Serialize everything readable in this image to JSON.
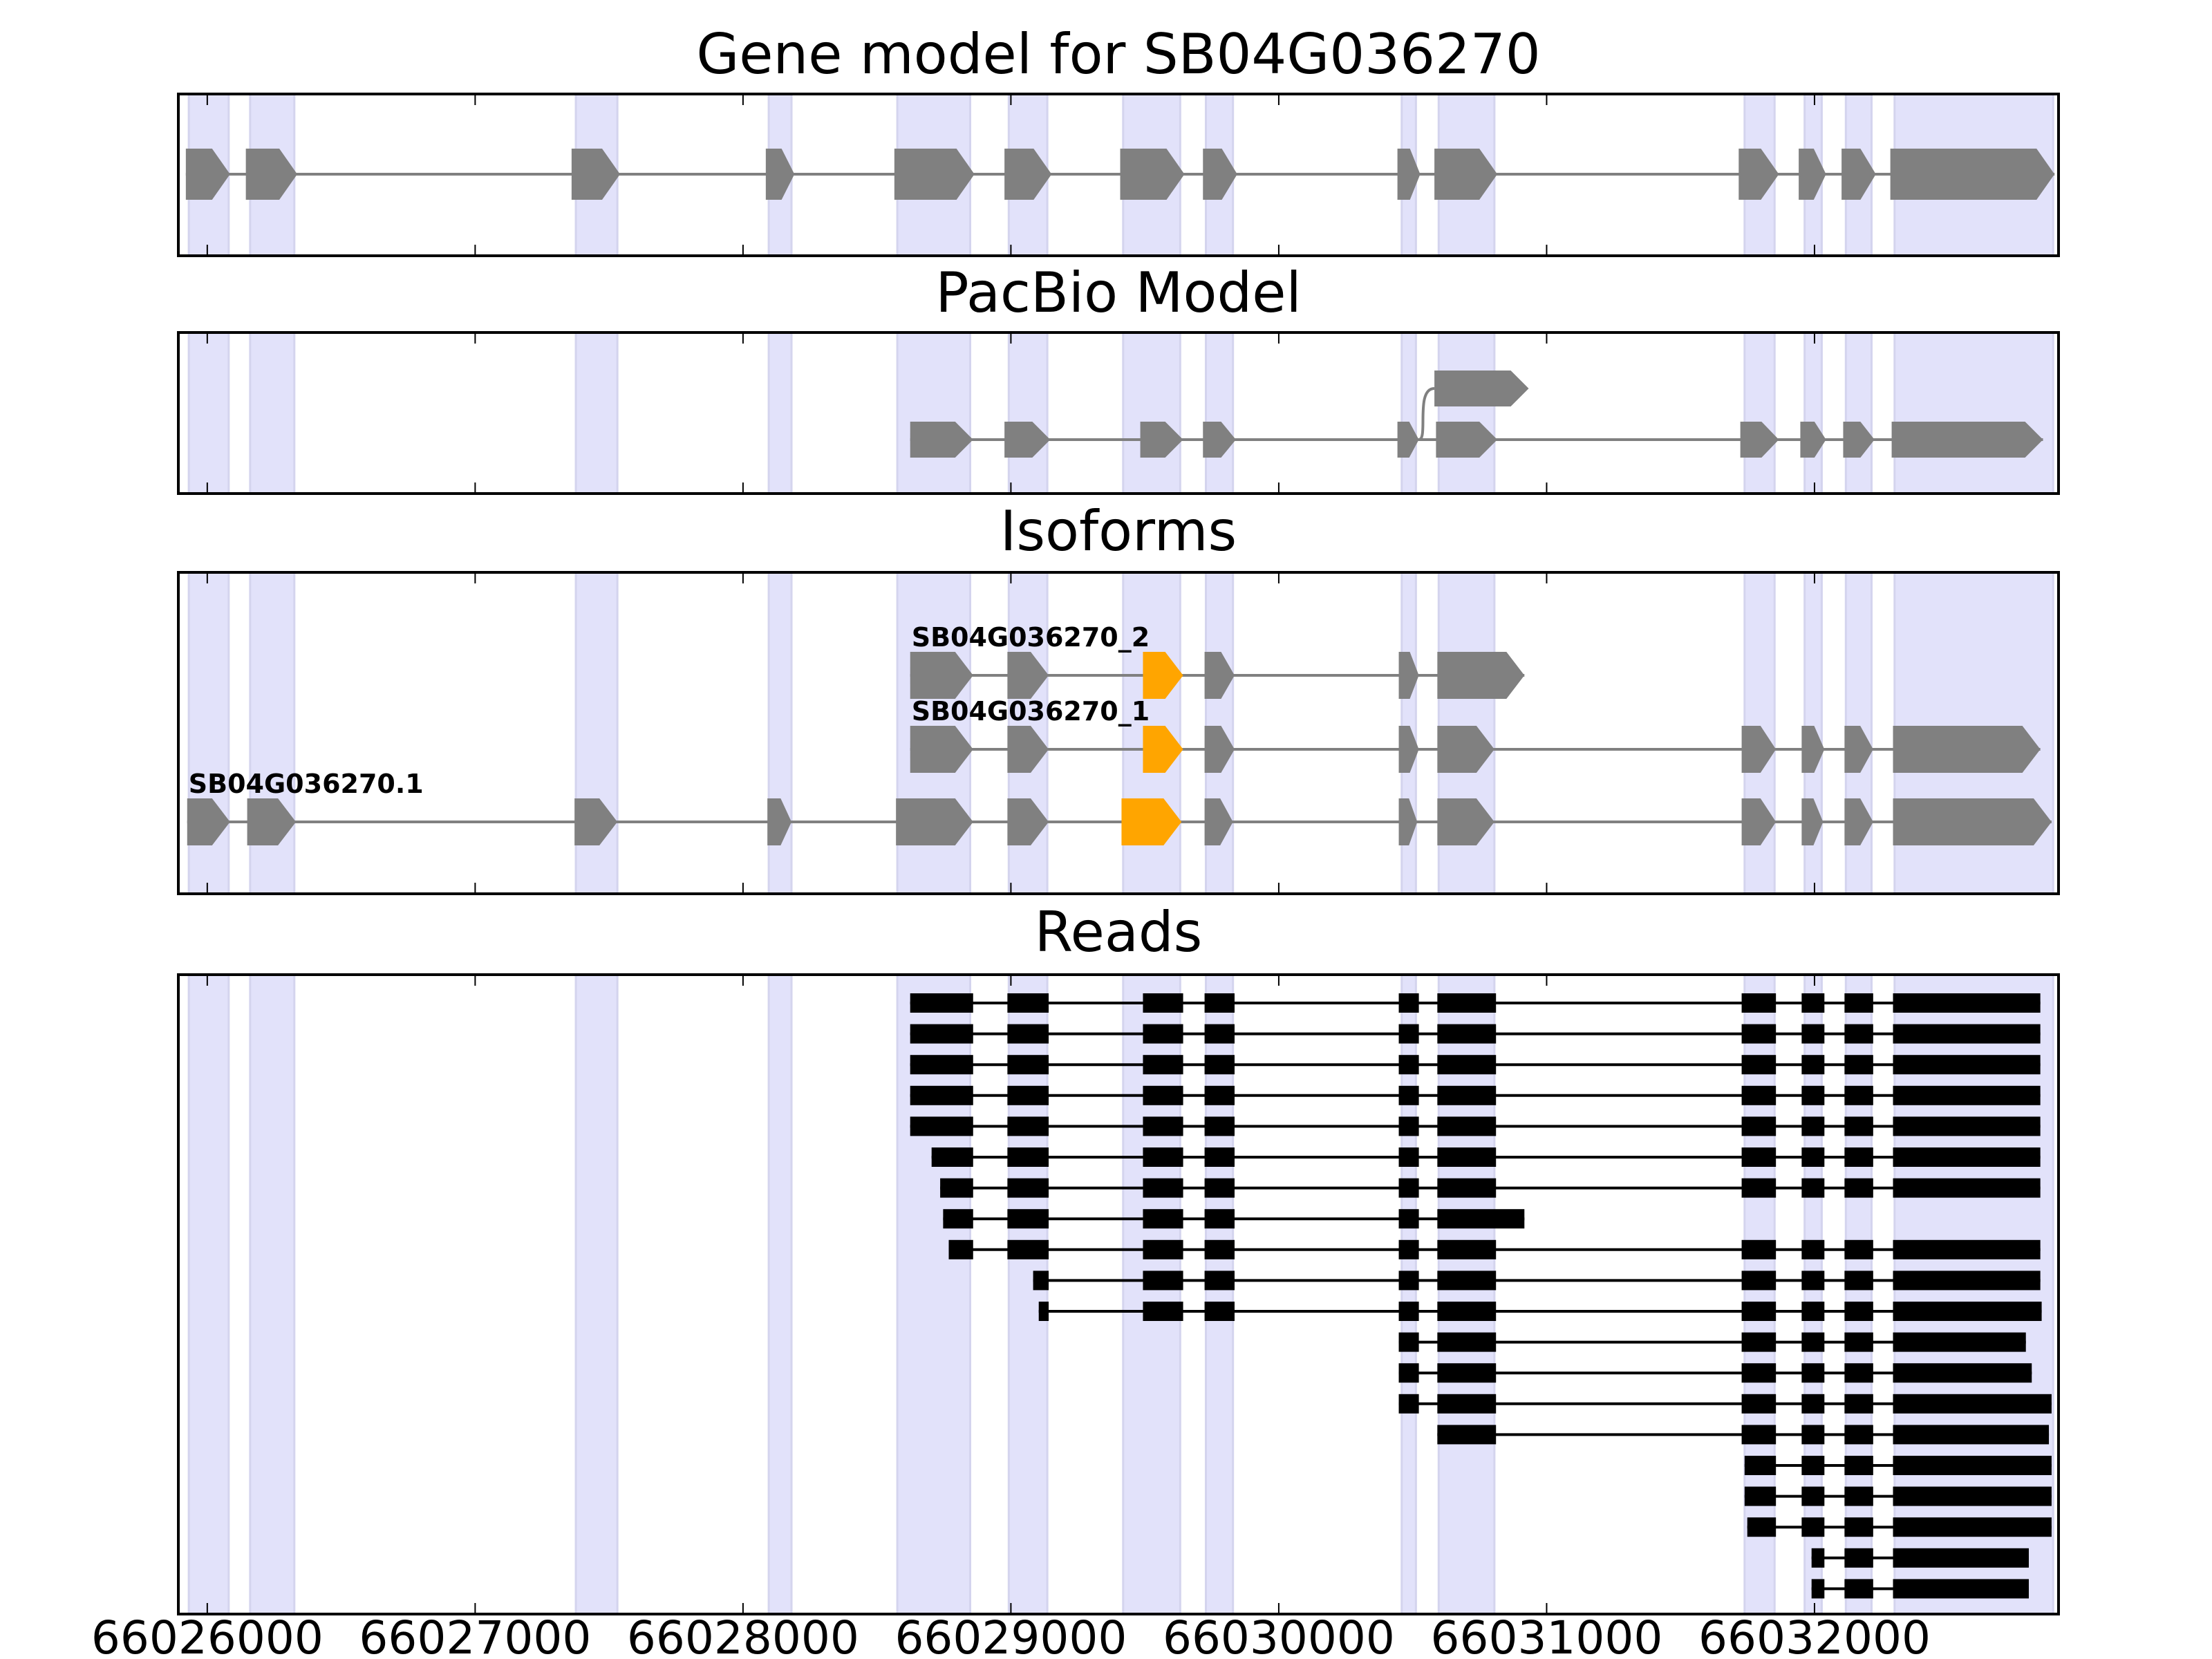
{
  "chart_data": {
    "type": "gene-structure",
    "xlim": [
      66025892,
      66032911
    ],
    "xticks": [
      66026000,
      66027000,
      66028000,
      66029000,
      66030000,
      66031000,
      66032000
    ],
    "xtick_labels": [
      "66026000",
      "66027000",
      "66028000",
      "66029000",
      "66030000",
      "66031000",
      "66032000"
    ],
    "colors": {
      "shade": "#e2e2fa",
      "exon": "#808080",
      "highlight": "#ffa500",
      "read": "#000000",
      "intron_gray": "#808080"
    },
    "shaded_exons": [
      [
        66025931,
        66026080
      ],
      [
        66026160,
        66026325
      ],
      [
        66027376,
        66027531
      ],
      [
        66028096,
        66028181
      ],
      [
        66028576,
        66028848
      ],
      [
        66028992,
        66029136
      ],
      [
        66029419,
        66029632
      ],
      [
        66029728,
        66029829
      ],
      [
        66030459,
        66030512
      ],
      [
        66030597,
        66030805
      ],
      [
        66031739,
        66031851
      ],
      [
        66031963,
        66032027
      ],
      [
        66032117,
        66032213
      ],
      [
        66032299,
        66032891
      ]
    ],
    "panels": [
      {
        "title": "Gene model for SB04G036270",
        "tracks": [
          {
            "exons": [
              [
                66025920,
                66026085
              ],
              [
                66026144,
                66026336
              ],
              [
                66027360,
                66027541
              ],
              [
                66028085,
                66028192
              ],
              [
                66028565,
                66028864
              ],
              [
                66028976,
                66029152
              ],
              [
                66029408,
                66029648
              ],
              [
                66029717,
                66029845
              ],
              [
                66030443,
                66030528
              ],
              [
                66030581,
                66030816
              ],
              [
                66031717,
                66031867
              ],
              [
                66031941,
                66032043
              ],
              [
                66032101,
                66032229
              ],
              [
                66032283,
                66032896
              ]
            ]
          }
        ]
      },
      {
        "title": "PacBio Model",
        "tracks": [
          {
            "exons": [
              [
                66028624,
                66028859
              ],
              [
                66028976,
                66029147
              ],
              [
                66029483,
                66029643
              ],
              [
                66029717,
                66029840
              ],
              [
                66030443,
                66030523
              ],
              [
                66030587,
                66030816
              ],
              [
                66031723,
                66031867
              ],
              [
                66031947,
                66032043
              ],
              [
                66032107,
                66032224
              ],
              [
                66032288,
                66032853
              ]
            ]
          },
          {
            "branch_from": 66030523,
            "exons": [
              [
                66030581,
                66030933
              ]
            ]
          }
        ]
      },
      {
        "title": "Isoforms",
        "tracks": [
          {
            "label": "SB04G036270.1",
            "highlight_index": 6,
            "exons": [
              [
                66025925,
                66026085
              ],
              [
                66026149,
                66026331
              ],
              [
                66027371,
                66027531
              ],
              [
                66028091,
                66028181
              ],
              [
                66028571,
                66028859
              ],
              [
                66028987,
                66029141
              ],
              [
                66029413,
                66029637
              ],
              [
                66029723,
                66029829
              ],
              [
                66030448,
                66030517
              ],
              [
                66030592,
                66030805
              ],
              [
                66031728,
                66031856
              ],
              [
                66031952,
                66032032
              ],
              [
                66032112,
                66032219
              ],
              [
                66032293,
                66032885
              ]
            ]
          },
          {
            "label": "SB04G036270_1",
            "highlight_index": 2,
            "exons": [
              [
                66028624,
                66028859
              ],
              [
                66028987,
                66029141
              ],
              [
                66029493,
                66029643
              ],
              [
                66029723,
                66029835
              ],
              [
                66030448,
                66030523
              ],
              [
                66030592,
                66030805
              ],
              [
                66031728,
                66031856
              ],
              [
                66031952,
                66032037
              ],
              [
                66032112,
                66032219
              ],
              [
                66032293,
                66032843
              ]
            ]
          },
          {
            "label": "SB04G036270_2",
            "highlight_index": 2,
            "exons": [
              [
                66028624,
                66028859
              ],
              [
                66028987,
                66029141
              ],
              [
                66029493,
                66029643
              ],
              [
                66029723,
                66029835
              ],
              [
                66030448,
                66030523
              ],
              [
                66030592,
                66030917
              ]
            ]
          }
        ]
      },
      {
        "title": "Reads",
        "reads": [
          [
            [
              66028624,
              66028859
            ],
            [
              66028987,
              66029141
            ],
            [
              66029493,
              66029643
            ],
            [
              66029723,
              66029835
            ],
            [
              66030448,
              66030523
            ],
            [
              66030592,
              66030811
            ],
            [
              66031728,
              66031856
            ],
            [
              66031952,
              66032037
            ],
            [
              66032112,
              66032219
            ],
            [
              66032293,
              66032843
            ]
          ],
          [
            [
              66028624,
              66028859
            ],
            [
              66028987,
              66029141
            ],
            [
              66029493,
              66029643
            ],
            [
              66029723,
              66029835
            ],
            [
              66030448,
              66030523
            ],
            [
              66030592,
              66030811
            ],
            [
              66031728,
              66031856
            ],
            [
              66031952,
              66032037
            ],
            [
              66032112,
              66032219
            ],
            [
              66032293,
              66032843
            ]
          ],
          [
            [
              66028624,
              66028859
            ],
            [
              66028987,
              66029141
            ],
            [
              66029493,
              66029643
            ],
            [
              66029723,
              66029835
            ],
            [
              66030448,
              66030523
            ],
            [
              66030592,
              66030811
            ],
            [
              66031728,
              66031856
            ],
            [
              66031952,
              66032037
            ],
            [
              66032112,
              66032219
            ],
            [
              66032293,
              66032843
            ]
          ],
          [
            [
              66028624,
              66028859
            ],
            [
              66028987,
              66029141
            ],
            [
              66029493,
              66029643
            ],
            [
              66029723,
              66029835
            ],
            [
              66030448,
              66030523
            ],
            [
              66030592,
              66030811
            ],
            [
              66031728,
              66031856
            ],
            [
              66031952,
              66032037
            ],
            [
              66032112,
              66032219
            ],
            [
              66032293,
              66032843
            ]
          ],
          [
            [
              66028624,
              66028859
            ],
            [
              66028987,
              66029141
            ],
            [
              66029493,
              66029643
            ],
            [
              66029723,
              66029835
            ],
            [
              66030448,
              66030523
            ],
            [
              66030592,
              66030811
            ],
            [
              66031728,
              66031856
            ],
            [
              66031952,
              66032037
            ],
            [
              66032112,
              66032219
            ],
            [
              66032293,
              66032843
            ]
          ],
          [
            [
              66028704,
              66028859
            ],
            [
              66028987,
              66029141
            ],
            [
              66029493,
              66029643
            ],
            [
              66029723,
              66029835
            ],
            [
              66030448,
              66030523
            ],
            [
              66030592,
              66030811
            ],
            [
              66031728,
              66031856
            ],
            [
              66031952,
              66032037
            ],
            [
              66032112,
              66032219
            ],
            [
              66032293,
              66032843
            ]
          ],
          [
            [
              66028736,
              66028859
            ],
            [
              66028987,
              66029141
            ],
            [
              66029493,
              66029643
            ],
            [
              66029723,
              66029835
            ],
            [
              66030448,
              66030523
            ],
            [
              66030592,
              66030811
            ],
            [
              66031728,
              66031856
            ],
            [
              66031952,
              66032037
            ],
            [
              66032112,
              66032219
            ],
            [
              66032293,
              66032843
            ]
          ],
          [
            [
              66028747,
              66028859
            ],
            [
              66028987,
              66029141
            ],
            [
              66029493,
              66029643
            ],
            [
              66029723,
              66029835
            ],
            [
              66030448,
              66030523
            ],
            [
              66030592,
              66030917
            ]
          ],
          [
            [
              66028768,
              66028859
            ],
            [
              66028987,
              66029141
            ],
            [
              66029493,
              66029643
            ],
            [
              66029723,
              66029835
            ],
            [
              66030448,
              66030523
            ],
            [
              66030592,
              66030811
            ],
            [
              66031728,
              66031856
            ],
            [
              66031952,
              66032037
            ],
            [
              66032112,
              66032219
            ],
            [
              66032293,
              66032843
            ]
          ],
          [
            [
              66029083,
              66029141
            ],
            [
              66029493,
              66029643
            ],
            [
              66029723,
              66029835
            ],
            [
              66030448,
              66030523
            ],
            [
              66030592,
              66030811
            ],
            [
              66031728,
              66031856
            ],
            [
              66031952,
              66032037
            ],
            [
              66032112,
              66032219
            ],
            [
              66032293,
              66032843
            ]
          ],
          [
            [
              66029104,
              66029141
            ],
            [
              66029493,
              66029643
            ],
            [
              66029723,
              66029835
            ],
            [
              66030448,
              66030523
            ],
            [
              66030592,
              66030811
            ],
            [
              66031728,
              66031856
            ],
            [
              66031952,
              66032037
            ],
            [
              66032112,
              66032219
            ],
            [
              66032293,
              66032848
            ]
          ],
          [
            [
              66030448,
              66030523
            ],
            [
              66030592,
              66030811
            ],
            [
              66031728,
              66031856
            ],
            [
              66031952,
              66032037
            ],
            [
              66032112,
              66032219
            ],
            [
              66032293,
              66032789
            ]
          ],
          [
            [
              66030448,
              66030523
            ],
            [
              66030592,
              66030811
            ],
            [
              66031728,
              66031856
            ],
            [
              66031952,
              66032037
            ],
            [
              66032112,
              66032219
            ],
            [
              66032293,
              66032811
            ]
          ],
          [
            [
              66030448,
              66030523
            ],
            [
              66030592,
              66030811
            ],
            [
              66031728,
              66031856
            ],
            [
              66031952,
              66032037
            ],
            [
              66032112,
              66032219
            ],
            [
              66032293,
              66032885
            ]
          ],
          [
            [
              66030592,
              66030811
            ],
            [
              66031728,
              66031856
            ],
            [
              66031952,
              66032037
            ],
            [
              66032112,
              66032219
            ],
            [
              66032293,
              66032875
            ]
          ],
          [
            [
              66031739,
              66031856
            ],
            [
              66031952,
              66032037
            ],
            [
              66032112,
              66032219
            ],
            [
              66032293,
              66032885
            ]
          ],
          [
            [
              66031739,
              66031856
            ],
            [
              66031952,
              66032037
            ],
            [
              66032112,
              66032219
            ],
            [
              66032293,
              66032885
            ]
          ],
          [
            [
              66031749,
              66031856
            ],
            [
              66031952,
              66032037
            ],
            [
              66032112,
              66032219
            ],
            [
              66032293,
              66032885
            ]
          ],
          [
            [
              66031989,
              66032037
            ],
            [
              66032112,
              66032219
            ],
            [
              66032293,
              66032800
            ]
          ],
          [
            [
              66031989,
              66032037
            ],
            [
              66032112,
              66032219
            ],
            [
              66032293,
              66032800
            ]
          ]
        ]
      }
    ]
  }
}
